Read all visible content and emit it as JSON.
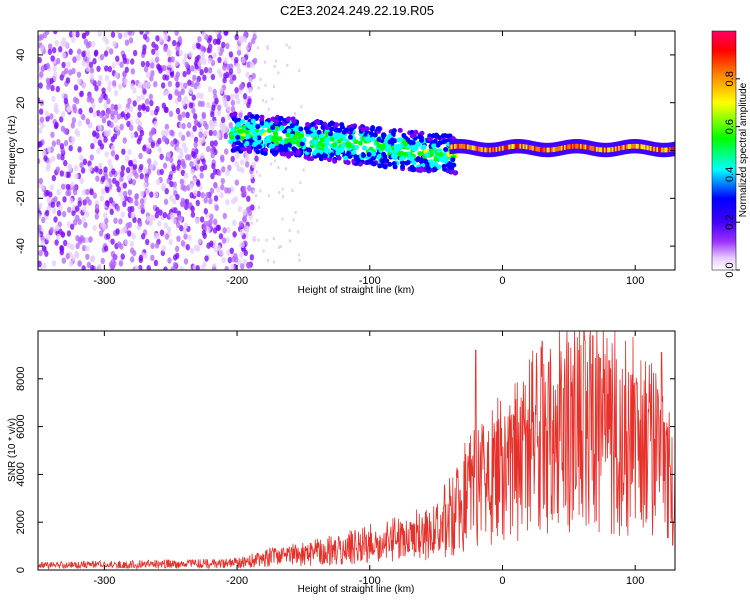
{
  "title": "C2E3.2024.249.22.19.R05",
  "chart_data": [
    {
      "type": "heatmap",
      "title": "C2E3.2024.249.22.19.R05",
      "xlabel": "Height of straight line (km)",
      "ylabel": "Frequency (Hz)",
      "xlim": [
        -350,
        130
      ],
      "ylim": [
        -50,
        50
      ],
      "x_ticks": [
        -300,
        -200,
        -100,
        0,
        100
      ],
      "y_ticks": [
        -40,
        -20,
        0,
        20,
        40
      ],
      "colorbar": {
        "label": "Normalized spectral amplitude",
        "range": [
          0,
          1
        ],
        "ticks": [
          0.0,
          0.2,
          0.4,
          0.6,
          0.8
        ],
        "tick_labels": [
          "0.0",
          "0.2",
          "0.4",
          "0.6",
          "0.8"
        ],
        "colormap": [
          "#ffffff",
          "#e6ccff",
          "#7a00ff",
          "#0000ff",
          "#00ffff",
          "#00ff00",
          "#ffff00",
          "#ff8000",
          "#ff0000",
          "#ff0066"
        ]
      },
      "regions": [
        {
          "x": [
            -350,
            -185
          ],
          "freq": [
            -50,
            50
          ],
          "amplitude": 0.1,
          "pattern": "broadband noise"
        },
        {
          "x": [
            -205,
            -35
          ],
          "freq_center_start": 8,
          "freq_center_end": -2,
          "half_width": 8,
          "amplitude": 0.35
        },
        {
          "x": [
            -40,
            130
          ],
          "freq_center": 1,
          "half_width": 3,
          "amplitude": 0.85
        }
      ]
    },
    {
      "type": "line",
      "xlabel": "Height of straight line (km)",
      "ylabel": "SNR (10 * v/v)",
      "xlim": [
        -350,
        130
      ],
      "ylim": [
        0,
        10000
      ],
      "x_ticks": [
        -300,
        -200,
        -100,
        0,
        100
      ],
      "y_ticks": [
        0,
        2000,
        4000,
        6000,
        8000
      ],
      "color": "#e8302a",
      "series": [
        {
          "x": [
            -350,
            -300,
            -250,
            -200,
            -180,
            -150,
            -120,
            -100,
            -80,
            -60,
            -40,
            -20,
            0,
            20,
            40,
            60,
            80,
            100,
            120,
            130
          ],
          "y": [
            200,
            220,
            250,
            280,
            500,
            700,
            900,
            1100,
            1300,
            1500,
            2200,
            3500,
            4300,
            5200,
            5800,
            6100,
            5900,
            5400,
            4600,
            3700
          ]
        }
      ],
      "peaks": [
        {
          "x": -20,
          "y": 9200
        },
        {
          "x": 35,
          "y": 8700
        },
        {
          "x": 62,
          "y": 9600
        },
        {
          "x": 68,
          "y": 9800
        },
        {
          "x": 120,
          "y": 9100
        }
      ]
    }
  ]
}
